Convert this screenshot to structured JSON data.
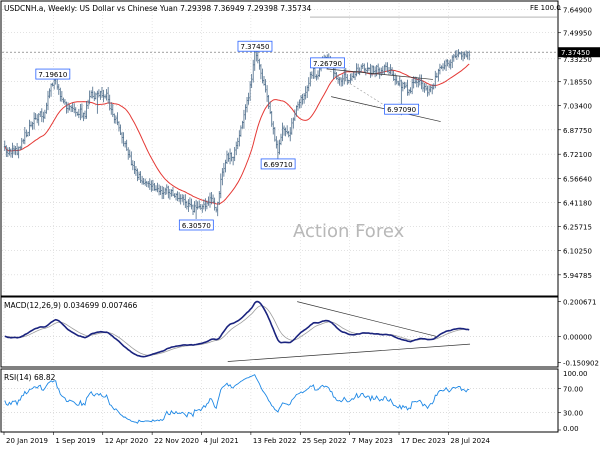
{
  "chart_data": {
    "type": "ohlc",
    "instrument_title": "USDCNH.a, Weekly:  US Dollar vs Chinese Yuan  7.29398  7.36949  7.29398  7.35734",
    "fe_label": "FE 100.0",
    "watermark": "Action Forex",
    "price_axis": {
      "min": 5.825,
      "max": 7.69,
      "ticks": [
        "7.64900",
        "7.49950",
        "7.33250",
        "7.18550",
        "7.03400",
        "6.87750",
        "6.72100",
        "6.56640",
        "6.41180",
        "6.25715",
        "6.10250",
        "5.94785"
      ],
      "tick_values": [
        7.649,
        7.4995,
        7.3325,
        7.1855,
        7.034,
        6.8775,
        6.721,
        6.5664,
        6.4118,
        6.25715,
        6.1025,
        5.94785
      ],
      "current_price_label": "7.37450",
      "current_price": 7.3745,
      "fe_level": 7.6
    },
    "x_axis": {
      "labels": [
        "20 Jan 2019",
        "1 Sep 2019",
        "12 Apr 2020",
        "22 Nov 2020",
        "4 Jul 2021",
        "13 Feb 2022",
        "25 Sep 2022",
        "7 May 2023",
        "17 Dec 2023",
        "28 Jul 2024"
      ],
      "label_weeks": [
        0,
        32,
        64,
        96,
        128,
        160,
        192,
        224,
        256,
        288
      ]
    },
    "total_weeks": 302,
    "price_anchors": [
      [
        0,
        6.75
      ],
      [
        8,
        6.74
      ],
      [
        16,
        6.9
      ],
      [
        24,
        6.98
      ],
      [
        26,
        6.97
      ],
      [
        28,
        7.1
      ],
      [
        31,
        7.18
      ],
      [
        33,
        7.19
      ],
      [
        36,
        7.1
      ],
      [
        40,
        7.02
      ],
      [
        46,
        7.0
      ],
      [
        52,
        6.98
      ],
      [
        56,
        7.12
      ],
      [
        58,
        7.09
      ],
      [
        62,
        7.12
      ],
      [
        66,
        7.1
      ],
      [
        70,
        6.97
      ],
      [
        74,
        6.9
      ],
      [
        78,
        6.78
      ],
      [
        84,
        6.62
      ],
      [
        88,
        6.56
      ],
      [
        92,
        6.55
      ],
      [
        96,
        6.53
      ],
      [
        100,
        6.47
      ],
      [
        104,
        6.5
      ],
      [
        108,
        6.47
      ],
      [
        112,
        6.45
      ],
      [
        116,
        6.42
      ],
      [
        120,
        6.38
      ],
      [
        124,
        6.37
      ],
      [
        126,
        6.37
      ],
      [
        130,
        6.4
      ],
      [
        134,
        6.45
      ],
      [
        137,
        6.37
      ],
      [
        140,
        6.55
      ],
      [
        144,
        6.7
      ],
      [
        148,
        6.72
      ],
      [
        150,
        6.76
      ],
      [
        152,
        6.85
      ],
      [
        156,
        7.0
      ],
      [
        158,
        7.1
      ],
      [
        160,
        7.2
      ],
      [
        162,
        7.37
      ],
      [
        166,
        7.25
      ],
      [
        170,
        7.1
      ],
      [
        174,
        6.87
      ],
      [
        177,
        6.72
      ],
      [
        180,
        6.9
      ],
      [
        184,
        6.85
      ],
      [
        187,
        6.93
      ],
      [
        190,
        7.05
      ],
      [
        194,
        7.1
      ],
      [
        198,
        7.22
      ],
      [
        200,
        7.25
      ],
      [
        202,
        7.2
      ],
      [
        206,
        7.32
      ],
      [
        209,
        7.35
      ],
      [
        212,
        7.28
      ],
      [
        214,
        7.22
      ],
      [
        217,
        7.19
      ],
      [
        220,
        7.22
      ],
      [
        224,
        7.2
      ],
      [
        228,
        7.25
      ],
      [
        232,
        7.28
      ],
      [
        236,
        7.25
      ],
      [
        240,
        7.27
      ],
      [
        244,
        7.26
      ],
      [
        248,
        7.27
      ],
      [
        252,
        7.22
      ],
      [
        256,
        7.17
      ],
      [
        260,
        7.14
      ],
      [
        262,
        7.13
      ],
      [
        266,
        7.19
      ],
      [
        270,
        7.18
      ],
      [
        274,
        7.1
      ],
      [
        278,
        7.18
      ],
      [
        282,
        7.27
      ],
      [
        286,
        7.3
      ],
      [
        290,
        7.33
      ],
      [
        294,
        7.37
      ]
    ],
    "price_extras": [
      [
        40,
        7.05
      ],
      [
        60,
        6.98
      ],
      [
        88,
        6.6
      ],
      [
        124,
        6.3057
      ],
      [
        148,
        6.65
      ],
      [
        162,
        7.3745
      ],
      [
        177,
        6.6971
      ],
      [
        209,
        7.2679
      ],
      [
        257,
        6.9709
      ]
    ],
    "annotations": [
      {
        "label": "7.19610",
        "week": 31,
        "price": 7.1961
      },
      {
        "label": "6.30570",
        "week": 124,
        "price": 6.3057
      },
      {
        "label": "7.37450",
        "week": 162,
        "price": 7.3745
      },
      {
        "label": "6.69710",
        "week": 177,
        "price": 6.6971
      },
      {
        "label": "7.26790",
        "week": 209,
        "price": 7.2679
      },
      {
        "label": "6.97090",
        "week": 257,
        "price": 6.9709
      }
    ],
    "macd": {
      "title": "MACD(12,26,9) 0.034699 0.007466",
      "ticks": [
        "0.200671",
        "0.00000",
        "-0.150902"
      ],
      "tick_values": [
        0.200671,
        0.0,
        -0.150902
      ],
      "range": [
        -0.165,
        0.215
      ],
      "current": 0.034699,
      "signal": 0.007466
    },
    "rsi": {
      "title": "RSI(14) 68.82",
      "ticks": [
        "70.00",
        "30.00",
        "0.00"
      ],
      "tick_values": [
        70,
        30,
        0
      ],
      "extra_tick_label": "100.00",
      "range": [
        0,
        100
      ],
      "current": 68.82
    },
    "colors": {
      "bars": "#4a6a88",
      "moving_average": "#e53935",
      "macd": "#1a237e",
      "signal": "#9e9e9e",
      "rsi": "#1e88e5",
      "trendlines": "#333333",
      "label_box_border": "#2962ff"
    }
  }
}
